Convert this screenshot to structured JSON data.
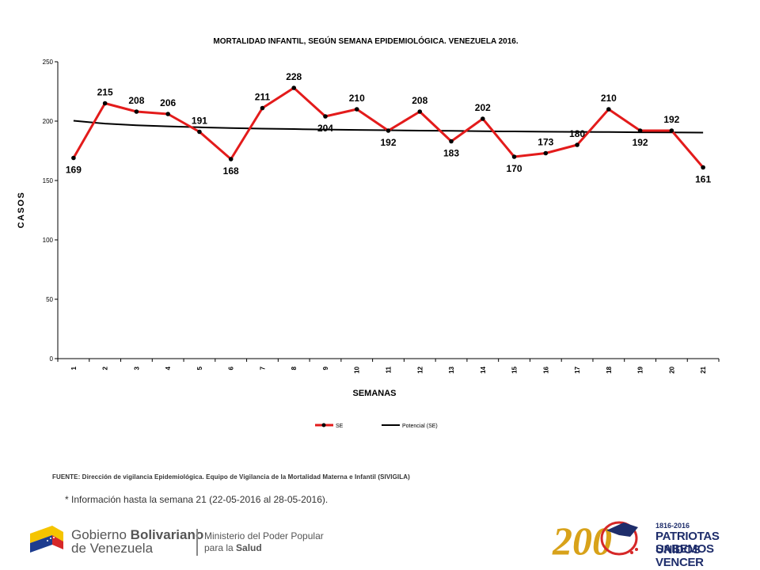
{
  "chart_data": {
    "type": "line",
    "title": "MORTALIDAD INFANTIL, SEGÚN SEMANA EPIDEMIOLÓGICA. VENEZUELA 2016.",
    "xlabel": "SEMANAS",
    "ylabel": "CASOS",
    "categories": [
      "1",
      "2",
      "3",
      "4",
      "5",
      "6",
      "7",
      "8",
      "9",
      "10",
      "11",
      "12",
      "13",
      "14",
      "15",
      "16",
      "17",
      "18",
      "19",
      "20",
      "21"
    ],
    "ylim": [
      0,
      250
    ],
    "yticks": [
      0,
      50,
      100,
      150,
      200,
      250
    ],
    "series": [
      {
        "name": "SE",
        "color": "#e31b1b",
        "values": [
          169,
          215,
          208,
          206,
          191,
          168,
          211,
          228,
          204,
          210,
          192,
          208,
          183,
          202,
          170,
          173,
          180,
          210,
          192,
          192,
          161
        ]
      },
      {
        "name": "Potencial (SE)",
        "color": "#000000",
        "values": [
          200.3,
          197.9,
          196.5,
          195.6,
          194.8,
          194.2,
          193.7,
          193.3,
          192.9,
          192.6,
          192.3,
          192.0,
          191.8,
          191.5,
          191.3,
          191.1,
          190.9,
          190.8,
          190.6,
          190.5,
          190.3
        ]
      }
    ],
    "grid": false,
    "legend": "bottom"
  },
  "source": "FUENTE: Dirección de vigilancia Epidemiológica. Equipo de Vigilancia de la Mortalidad Materna e Infantil (SIVIGILA)",
  "footnote": "* Información hasta la semana 21 (22-05-2016  al 28-05-2016).",
  "footer": {
    "gov_line1_a": "Gobierno ",
    "gov_line1_b": "Bolivariano",
    "gov_line2": "de Venezuela",
    "ministry_line1": "Ministerio del Poder Popular",
    "ministry_line2_a": "para la ",
    "ministry_line2_b": "Salud",
    "years": "1816-2016",
    "slogan_line1": "PATRIOTAS UNIDOS",
    "slogan_line2": "SABEMOS VENCER",
    "logo_number": "200"
  }
}
